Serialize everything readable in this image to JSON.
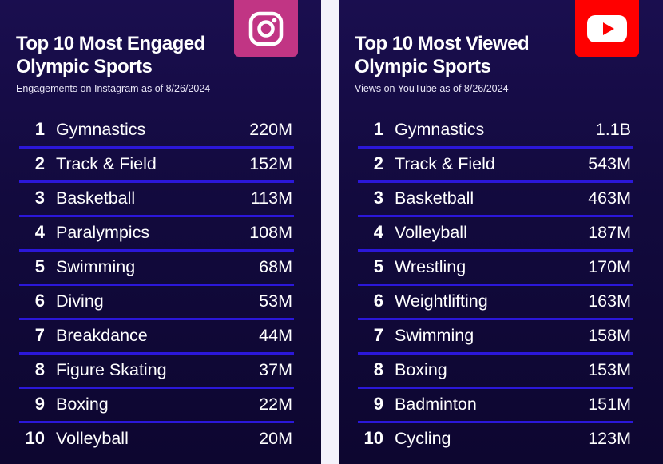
{
  "chart_data": [
    {
      "type": "table",
      "title": "Top 10 Most Engaged Olympic Sports",
      "subtitle": "Engagements on Instagram  as of 8/26/2024",
      "logo": "instagram-icon",
      "logo_color": "#c13584",
      "rows": [
        {
          "rank": "1",
          "sport": "Gymnastics",
          "value": "220M"
        },
        {
          "rank": "2",
          "sport": "Track & Field",
          "value": "152M"
        },
        {
          "rank": "3",
          "sport": "Basketball",
          "value": "113M"
        },
        {
          "rank": "4",
          "sport": "Paralympics",
          "value": "108M"
        },
        {
          "rank": "5",
          "sport": "Swimming",
          "value": "68M"
        },
        {
          "rank": "6",
          "sport": "Diving",
          "value": "53M"
        },
        {
          "rank": "7",
          "sport": "Breakdance",
          "value": "44M"
        },
        {
          "rank": "8",
          "sport": "Figure Skating",
          "value": "37M"
        },
        {
          "rank": "9",
          "sport": "Boxing",
          "value": "22M"
        },
        {
          "rank": "10",
          "sport": "Volleyball",
          "value": "20M"
        }
      ]
    },
    {
      "type": "table",
      "title": "Top 10 Most Viewed Olympic Sports",
      "subtitle": "Views on YouTube as of 8/26/2024",
      "logo": "youtube-icon",
      "logo_color": "#ff0000",
      "rows": [
        {
          "rank": "1",
          "sport": "Gymnastics",
          "value": "1.1B"
        },
        {
          "rank": "2",
          "sport": "Track & Field",
          "value": "543M"
        },
        {
          "rank": "3",
          "sport": "Basketball",
          "value": "463M"
        },
        {
          "rank": "4",
          "sport": "Volleyball",
          "value": "187M"
        },
        {
          "rank": "5",
          "sport": "Wrestling",
          "value": "170M"
        },
        {
          "rank": "6",
          "sport": "Weightlifting",
          "value": "163M"
        },
        {
          "rank": "7",
          "sport": "Swimming",
          "value": "158M"
        },
        {
          "rank": "8",
          "sport": "Boxing",
          "value": "153M"
        },
        {
          "rank": "9",
          "sport": "Badminton",
          "value": "151M"
        },
        {
          "rank": "10",
          "sport": "Cycling",
          "value": "123M"
        }
      ]
    }
  ],
  "colors": {
    "panel_background": "#120a3d",
    "row_divider": "#2b17d9",
    "page_background": "#f4f2fb"
  }
}
